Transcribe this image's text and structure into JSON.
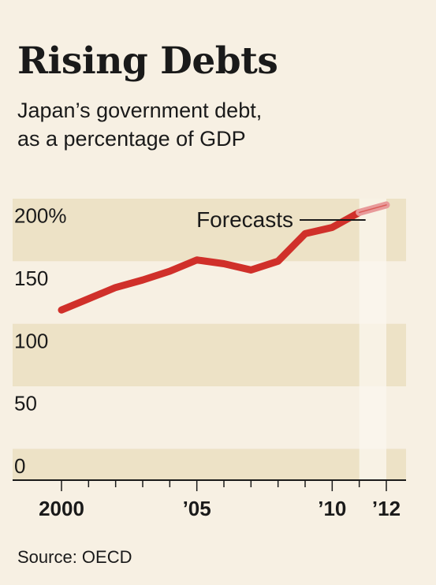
{
  "header": {
    "title": "Rising Debts",
    "subtitle_line1": "Japan’s government debt,",
    "subtitle_line2": "as a percentage of GDP"
  },
  "footer": {
    "source": "Source: OECD"
  },
  "colors": {
    "background": "#f7f0e3",
    "band": "#ede2c6",
    "forecast_band": "#fbf7ef",
    "line": "#d0302a",
    "forecast_line": "#e89a9a",
    "axis": "#1a1a1a"
  },
  "chart_data": {
    "type": "line",
    "title": "Rising Debts",
    "subtitle": "Japan’s government debt, as a percentage of GDP",
    "xlabel": "",
    "ylabel": "",
    "xlim": [
      2000,
      2012
    ],
    "ylim": [
      0,
      225
    ],
    "grid": "alternating horizontal bands",
    "y_ticks": [
      {
        "value": 0,
        "label": "0"
      },
      {
        "value": 50,
        "label": "50"
      },
      {
        "value": 100,
        "label": "100"
      },
      {
        "value": 150,
        "label": "150"
      },
      {
        "value": 200,
        "label": "200%"
      }
    ],
    "x_ticks": [
      {
        "value": 2000,
        "label": "2000"
      },
      {
        "value": 2005,
        "label": "’05"
      },
      {
        "value": 2010,
        "label": "’10"
      },
      {
        "value": 2012,
        "label": "’12"
      }
    ],
    "series": [
      {
        "x": [
          2000,
          2001,
          2002,
          2003,
          2004,
          2005,
          2006,
          2007,
          2008,
          2009,
          2010,
          2011
        ],
        "values": [
          136,
          145,
          154,
          160,
          167,
          176,
          173,
          168,
          175,
          197,
          202,
          214
        ]
      }
    ],
    "forecast": {
      "label": "Forecasts",
      "x_start": 2011,
      "x_end": 2012,
      "x": [
        2011,
        2012
      ],
      "values": [
        214,
        220
      ]
    }
  }
}
